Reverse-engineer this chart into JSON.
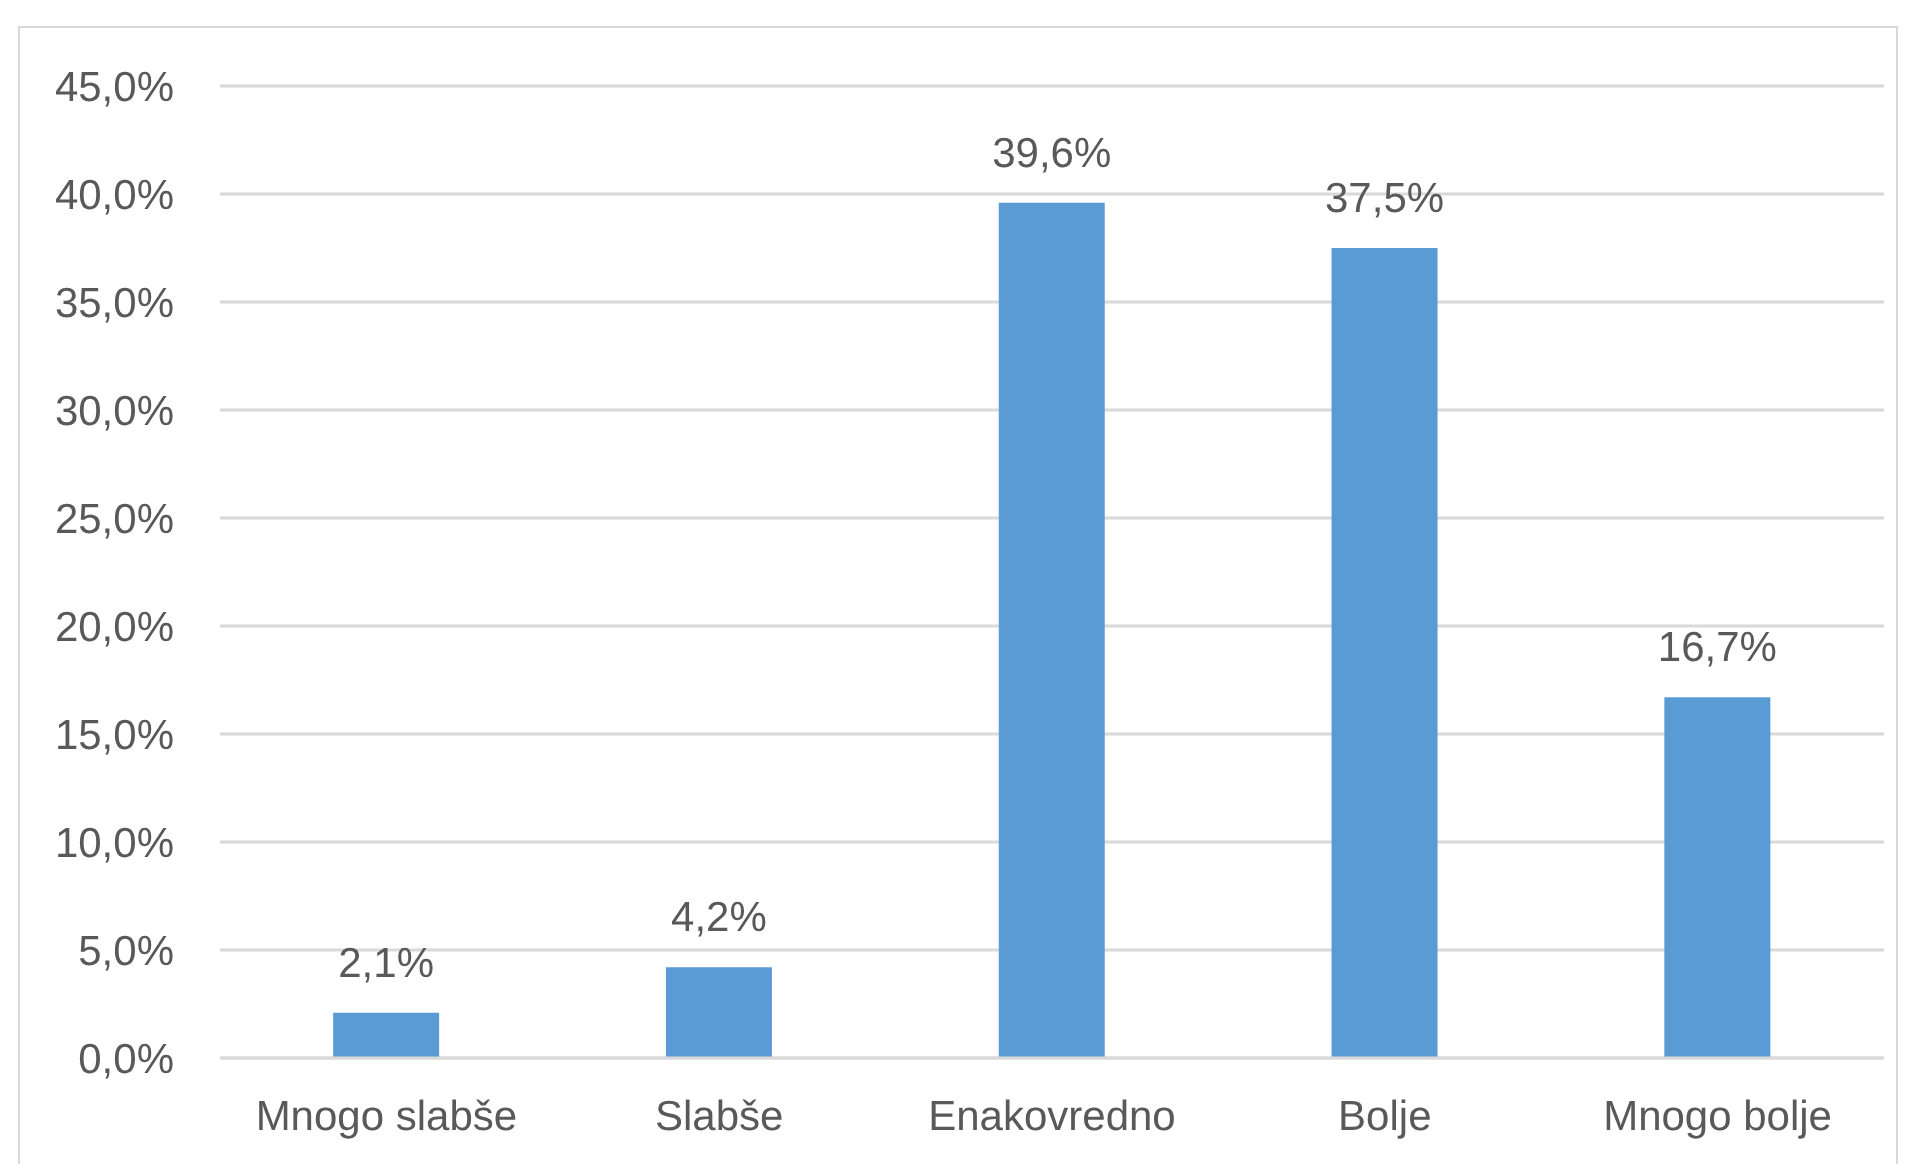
{
  "chart_data": {
    "type": "bar",
    "categories": [
      "Mnogo slabše",
      "Slabše",
      "Enakovredno",
      "Bolje",
      "Mnogo bolje"
    ],
    "values": [
      2.1,
      4.2,
      39.6,
      37.5,
      16.7
    ],
    "value_labels": [
      "2,1%",
      "4,2%",
      "39,6%",
      "37,5%",
      "16,7%"
    ],
    "color": "#5b9bd5",
    "ylim": [
      0,
      45
    ],
    "yticks": [
      {
        "value": 0,
        "label": "0,0%"
      },
      {
        "value": 5,
        "label": "5,0%"
      },
      {
        "value": 10,
        "label": "10,0%"
      },
      {
        "value": 15,
        "label": "15,0%"
      },
      {
        "value": 20,
        "label": "20,0%"
      },
      {
        "value": 25,
        "label": "25,0%"
      },
      {
        "value": 30,
        "label": "30,0%"
      },
      {
        "value": 35,
        "label": "35,0%"
      },
      {
        "value": 40,
        "label": "40,0%"
      },
      {
        "value": 45,
        "label": "45,0%"
      }
    ],
    "grid": "y"
  }
}
